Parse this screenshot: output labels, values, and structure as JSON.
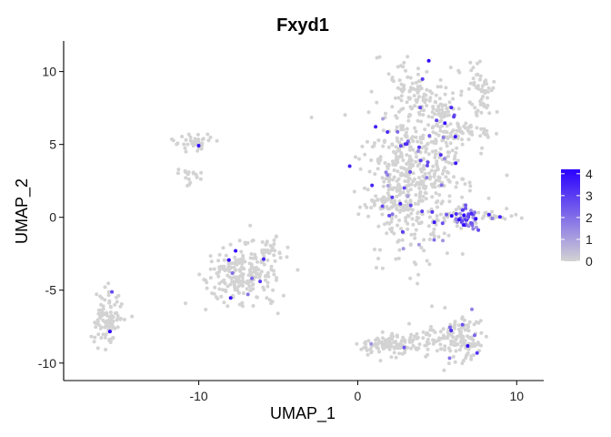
{
  "chart_data": {
    "type": "scatter",
    "title": "Fxyd1",
    "xlabel": "UMAP_1",
    "ylabel": "UMAP_2",
    "xlim": [
      -18.5,
      11.7
    ],
    "ylim": [
      -11.2,
      12.1
    ],
    "x_ticks": [
      -10,
      0,
      10
    ],
    "y_ticks": [
      10,
      5,
      0,
      -5,
      -10
    ],
    "grid": false,
    "legend_position": "right",
    "color_scale": {
      "low": "#d3d3d3",
      "high": "#2a00ff",
      "min": 0,
      "max": 4.2,
      "ticks": [
        4,
        3,
        2,
        1,
        0
      ]
    },
    "clusters": [
      {
        "cx": 3.8,
        "cy": 3.2,
        "sx": 1.6,
        "sy": 2.6,
        "n": 520,
        "rate": 0.07
      },
      {
        "cx": 3.6,
        "cy": 8.5,
        "sx": 0.9,
        "sy": 0.9,
        "n": 80,
        "rate": 0.03
      },
      {
        "cx": 7.6,
        "cy": 8.6,
        "sx": 0.5,
        "sy": 1.0,
        "n": 60,
        "rate": 0.01
      },
      {
        "cx": 6.8,
        "cy": 5.8,
        "sx": 1.1,
        "sy": 0.4,
        "n": 50,
        "rate": 0.04
      },
      {
        "cx": 5.5,
        "cy": 7.4,
        "sx": 0.5,
        "sy": 0.7,
        "n": 30,
        "rate": 0.05
      },
      {
        "cx": 2.3,
        "cy": 1.5,
        "sx": 0.9,
        "sy": 1.6,
        "n": 90,
        "rate": 0.04
      },
      {
        "cx": 7.0,
        "cy": -0.1,
        "sx": 0.35,
        "sy": 0.45,
        "n": 50,
        "rate": 0.75
      },
      {
        "cx": 8.6,
        "cy": 0.2,
        "sx": 0.8,
        "sy": 0.2,
        "n": 25,
        "rate": 0.08
      },
      {
        "cx": 5.8,
        "cy": 0.2,
        "sx": 0.4,
        "sy": 0.2,
        "n": 12,
        "rate": 0.3
      },
      {
        "cx": -10.3,
        "cy": 5.1,
        "sx": 0.6,
        "sy": 0.3,
        "n": 40,
        "rate": 0.05
      },
      {
        "cx": -10.7,
        "cy": 2.7,
        "sx": 0.5,
        "sy": 0.3,
        "n": 18,
        "rate": 0.05
      },
      {
        "cx": -7.3,
        "cy": -4.0,
        "sx": 1.1,
        "sy": 0.9,
        "n": 220,
        "rate": 0.04
      },
      {
        "cx": -5.6,
        "cy": -2.2,
        "sx": 0.5,
        "sy": 0.5,
        "n": 30,
        "rate": 0.03
      },
      {
        "cx": -15.7,
        "cy": -7.0,
        "sx": 0.4,
        "sy": 0.9,
        "n": 110,
        "rate": 0.08
      },
      {
        "cx": 1.8,
        "cy": -8.8,
        "sx": 0.9,
        "sy": 0.35,
        "n": 90,
        "rate": 0.03
      },
      {
        "cx": 6.5,
        "cy": -8.4,
        "sx": 0.9,
        "sy": 0.8,
        "n": 130,
        "rate": 0.06
      },
      {
        "cx": 4.2,
        "cy": -8.4,
        "sx": 0.9,
        "sy": 0.4,
        "n": 40,
        "rate": 0.04
      }
    ]
  }
}
